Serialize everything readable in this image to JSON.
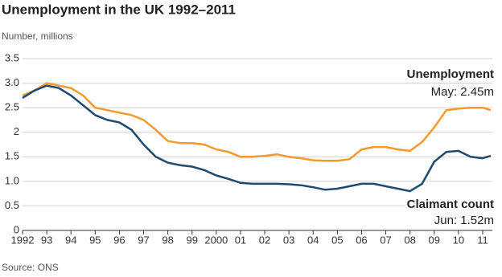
{
  "chart_data": {
    "type": "line",
    "title": "Unemployment in the UK 1992–2011",
    "subtitle": "Number, millions",
    "source": "Source: ONS",
    "annotations": [
      "Unemployment",
      "May: 2.45m",
      "Claimant count",
      "Jun: 1.52m"
    ],
    "x": [
      1992,
      1992.5,
      1993,
      1993.5,
      1994,
      1994.5,
      1995,
      1995.5,
      1996,
      1996.5,
      1997,
      1997.5,
      1998,
      1998.5,
      1999,
      1999.5,
      2000,
      2000.5,
      2001,
      2001.5,
      2002,
      2002.5,
      2003,
      2003.5,
      2004,
      2004.5,
      2005,
      2005.5,
      2006,
      2006.5,
      2007,
      2007.5,
      2008,
      2008.5,
      2009,
      2009.5,
      2010,
      2010.5,
      2011,
      2011.33
    ],
    "series": [
      {
        "name": "Unemployment",
        "color": "#f39a2e",
        "values": [
          2.75,
          2.85,
          3.0,
          2.95,
          2.9,
          2.75,
          2.5,
          2.45,
          2.4,
          2.35,
          2.25,
          2.05,
          1.82,
          1.78,
          1.78,
          1.75,
          1.65,
          1.6,
          1.5,
          1.5,
          1.52,
          1.55,
          1.5,
          1.47,
          1.43,
          1.42,
          1.42,
          1.45,
          1.65,
          1.7,
          1.7,
          1.65,
          1.62,
          1.8,
          2.1,
          2.45,
          2.48,
          2.5,
          2.5,
          2.45
        ]
      },
      {
        "name": "Claimant count",
        "color": "#1d4a72",
        "values": [
          2.7,
          2.85,
          2.95,
          2.9,
          2.75,
          2.55,
          2.35,
          2.25,
          2.2,
          2.05,
          1.75,
          1.5,
          1.38,
          1.33,
          1.3,
          1.23,
          1.12,
          1.05,
          0.97,
          0.95,
          0.95,
          0.95,
          0.94,
          0.92,
          0.88,
          0.83,
          0.85,
          0.9,
          0.95,
          0.95,
          0.9,
          0.85,
          0.8,
          0.95,
          1.4,
          1.6,
          1.62,
          1.5,
          1.47,
          1.52
        ]
      }
    ],
    "xlim": [
      1992,
      2011.4
    ],
    "xticks": [
      1992,
      {
        "value": 1993,
        "label": "93"
      },
      {
        "value": 1994,
        "label": "94"
      },
      {
        "value": 1995,
        "label": "95"
      },
      {
        "value": 1996,
        "label": "96"
      },
      {
        "value": 1997,
        "label": "97"
      },
      {
        "value": 1998,
        "label": "98"
      },
      {
        "value": 1999,
        "label": "99"
      },
      2000,
      {
        "value": 2001,
        "label": "01"
      },
      {
        "value": 2002,
        "label": "02"
      },
      {
        "value": 2003,
        "label": "03"
      },
      {
        "value": 2004,
        "label": "04"
      },
      {
        "value": 2005,
        "label": "05"
      },
      {
        "value": 2006,
        "label": "06"
      },
      {
        "value": 2007,
        "label": "07"
      },
      {
        "value": 2008,
        "label": "08"
      },
      {
        "value": 2009,
        "label": "09"
      },
      {
        "value": 2010,
        "label": "10"
      },
      {
        "value": 2011,
        "label": "11"
      }
    ],
    "ylim": [
      0,
      3.5
    ],
    "yticks": [
      0,
      0.5,
      {
        "value": 1,
        "label": "1.0"
      },
      1.5,
      2,
      2.5,
      {
        "value": 3,
        "label": "3.0"
      },
      3.5
    ],
    "grid": true
  }
}
